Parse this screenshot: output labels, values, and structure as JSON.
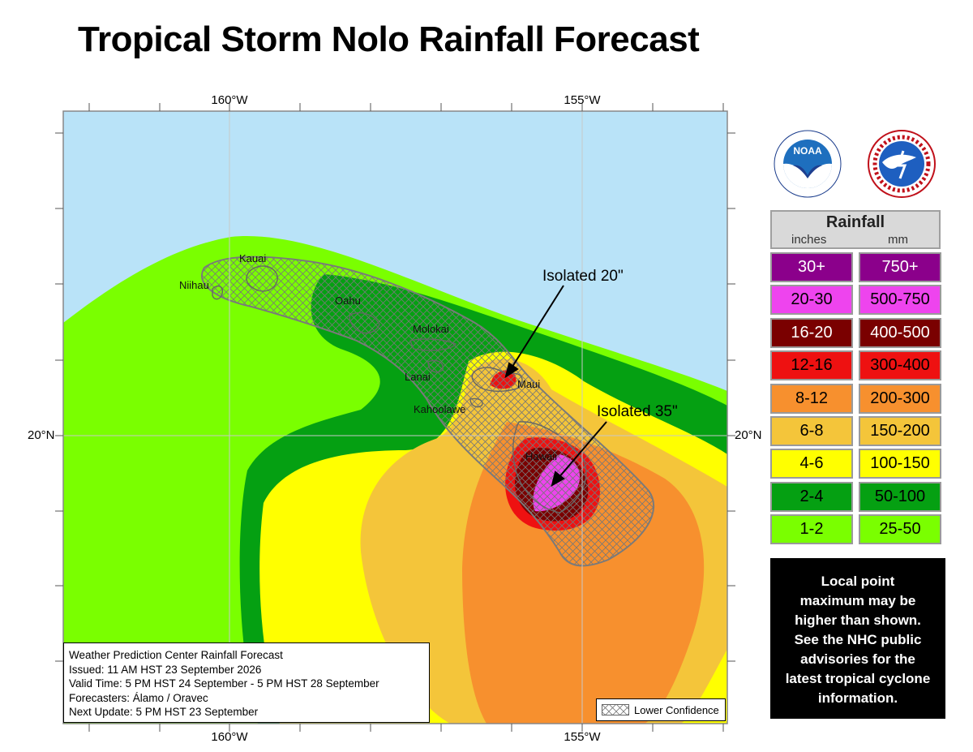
{
  "title": "Tropical Storm Nolo Rainfall Forecast",
  "axes": {
    "lon_top": [
      "160°W",
      "155°W"
    ],
    "lon_bottom": [
      "160°W",
      "155°W"
    ],
    "lat_left": "20°N",
    "lat_right": "20°N"
  },
  "islands": [
    "Kauai",
    "Niihau",
    "Oahu",
    "Molokai",
    "Lanai",
    "Maui",
    "Kahoolawe",
    "Hawaii"
  ],
  "callouts": {
    "maui": "Isolated 20\"",
    "hawaii": "Isolated 35\""
  },
  "info_box": {
    "line1": "Weather Prediction Center Rainfall Forecast",
    "line2": "Issued: 11 AM HST 23 September 2026",
    "line3": "Valid Time: 5 PM HST 24 September - 5 PM HST 28 September",
    "line4": "Forecasters: Álamo / Oravec",
    "line5": "Next Update: 5 PM HST 23 September"
  },
  "lower_confidence_label": "Lower Confidence",
  "logos": {
    "noaa": {
      "icon": "noaa-logo",
      "text": "NOAA",
      "ring": "NATIONAL OCEANIC AND ATMOSPHERIC ADMINISTRATION · U.S. DEPARTMENT OF COMMERCE"
    },
    "nws": {
      "icon": "nws-logo",
      "ring": "NATIONAL WEATHER SERVICE"
    }
  },
  "legend": {
    "title": "Rainfall",
    "unit_in": "inches",
    "unit_mm": "mm",
    "rows": [
      {
        "inches": "30+",
        "mm": "750+",
        "color": "#8b008b",
        "text_color": "#ffffff"
      },
      {
        "inches": "20-30",
        "mm": "500-750",
        "color": "#ee44ee",
        "text_color": "#000000"
      },
      {
        "inches": "16-20",
        "mm": "400-500",
        "color": "#7a0000",
        "text_color": "#ffffff"
      },
      {
        "inches": "12-16",
        "mm": "300-400",
        "color": "#ee1111",
        "text_color": "#000000"
      },
      {
        "inches": "8-12",
        "mm": "200-300",
        "color": "#f7902e",
        "text_color": "#000000"
      },
      {
        "inches": "6-8",
        "mm": "150-200",
        "color": "#f4c53a",
        "text_color": "#000000"
      },
      {
        "inches": "4-6",
        "mm": "100-150",
        "color": "#ffff00",
        "text_color": "#000000"
      },
      {
        "inches": "2-4",
        "mm": "50-100",
        "color": "#05a012",
        "text_color": "#000000"
      },
      {
        "inches": "1-2",
        "mm": "25-50",
        "color": "#7aff00",
        "text_color": "#000000"
      }
    ]
  },
  "note": {
    "line1": "Local point",
    "line2": "maximum may be",
    "line3": "higher than shown.",
    "line4": "See the NHC public",
    "line5": "advisories for the",
    "line6": "latest tropical cyclone",
    "line7": "information."
  },
  "colors": {
    "ocean": "#b9e3f8",
    "lt_green": "#7aff00",
    "dk_green": "#05a012",
    "yellow": "#ffff00",
    "gold": "#f4c53a",
    "orange": "#f7902e",
    "red": "#ee1111",
    "dark_red": "#7a0000",
    "magenta": "#ee44ee"
  }
}
